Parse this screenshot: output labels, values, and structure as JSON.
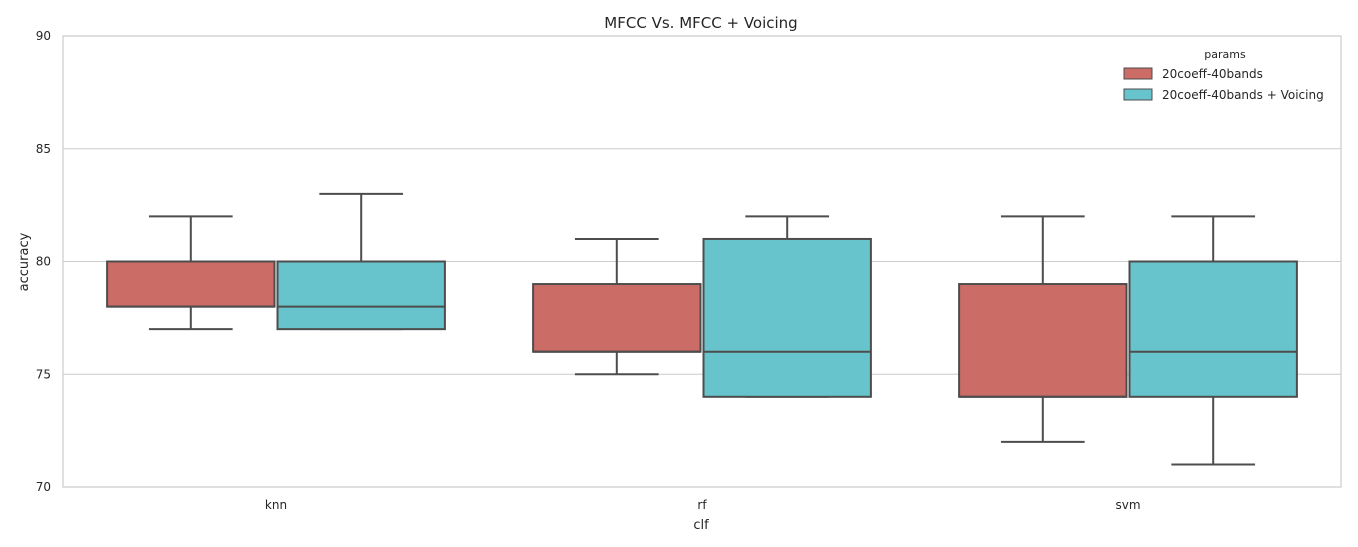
{
  "chart_data": {
    "type": "box",
    "title": "MFCC Vs. MFCC + Voicing",
    "xlabel": "clf",
    "ylabel": "accuracy",
    "ylim": [
      70,
      90
    ],
    "yticks": [
      70,
      75,
      80,
      85,
      90
    ],
    "grid": "horizontal",
    "categories": [
      "knn",
      "rf",
      "svm"
    ],
    "legend": {
      "title": "params",
      "placement": "top-right"
    },
    "series": [
      {
        "name": "20coeff-40bands",
        "color": "#cc6c66",
        "boxes": [
          {
            "whisker_low": 77,
            "q1": 78,
            "median": 78,
            "q3": 80,
            "whisker_high": 82
          },
          {
            "whisker_low": 75,
            "q1": 76,
            "median": 76,
            "q3": 79,
            "whisker_high": 81
          },
          {
            "whisker_low": 72,
            "q1": 74,
            "median": 74,
            "q3": 79,
            "whisker_high": 82
          }
        ]
      },
      {
        "name": "20coeff-40bands + Voicing",
        "color": "#67c4cc",
        "boxes": [
          {
            "whisker_low": 77,
            "q1": 77,
            "median": 78,
            "q3": 80,
            "whisker_high": 83
          },
          {
            "whisker_low": 74,
            "q1": 74,
            "median": 76,
            "q3": 81,
            "whisker_high": 82
          },
          {
            "whisker_low": 71,
            "q1": 74,
            "median": 76,
            "q3": 80,
            "whisker_high": 82
          }
        ]
      }
    ]
  }
}
